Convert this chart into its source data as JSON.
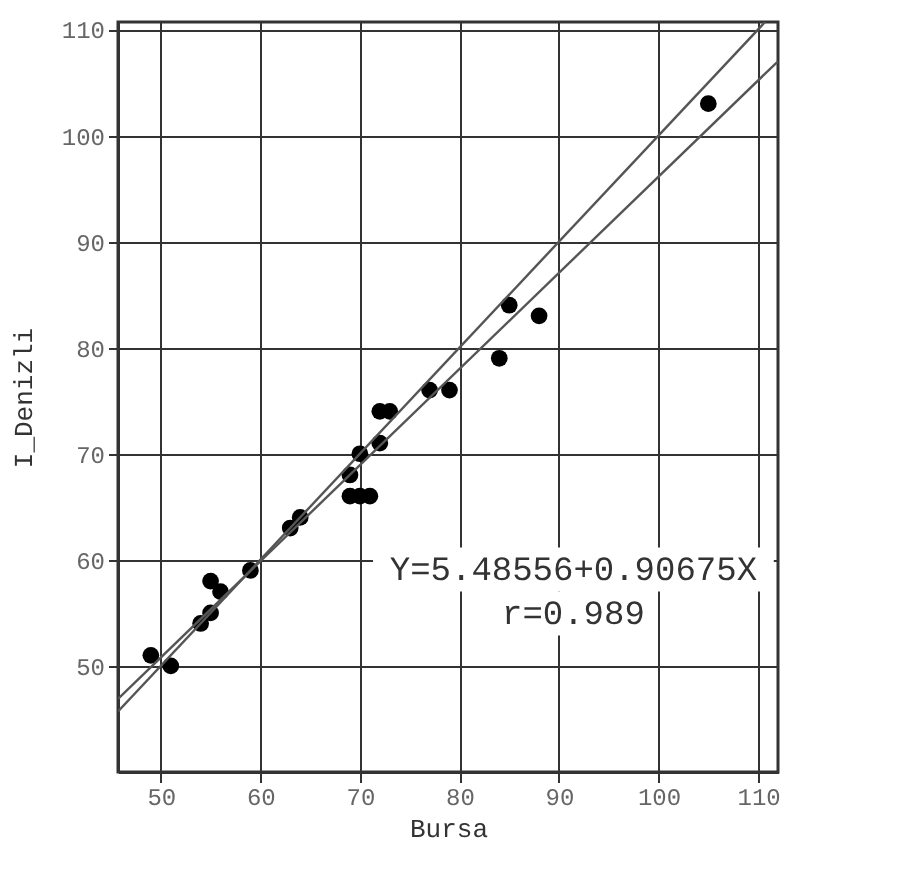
{
  "chart_data": {
    "type": "scatter",
    "xlabel": "Bursa",
    "ylabel": "I_Denizli",
    "xlim": [
      45.7,
      112
    ],
    "ylim": [
      40,
      110.7
    ],
    "xticks": [
      50,
      60,
      70,
      80,
      90,
      100,
      110
    ],
    "yticks": [
      50,
      60,
      70,
      80,
      90,
      100,
      110
    ],
    "grid": true,
    "marker": "circle",
    "annotations": [
      "Y=5.48556+0.90675X",
      "r=0.989"
    ],
    "series": [
      {
        "color": "#000000",
        "x": [
          49,
          51,
          54,
          55,
          55,
          56,
          59,
          63,
          64,
          69,
          70,
          71,
          69,
          70,
          72,
          72,
          73,
          77,
          79,
          84,
          85,
          88,
          105
        ],
        "values": [
          51,
          50,
          54,
          55,
          58,
          57,
          59,
          63,
          64,
          66,
          66,
          66,
          68,
          70,
          71,
          74,
          74,
          76,
          76,
          79,
          84,
          83,
          103
        ]
      },
      {
        "type": "line",
        "color": "#555555",
        "marker": "none",
        "x": [
          45.7,
          110.7
        ],
        "values": [
          45.7,
          110.7
        ]
      },
      {
        "type": "line",
        "color": "#555555",
        "marker": "none",
        "x": [
          45.7,
          112
        ],
        "values": [
          46.9,
          107.0
        ]
      }
    ]
  }
}
